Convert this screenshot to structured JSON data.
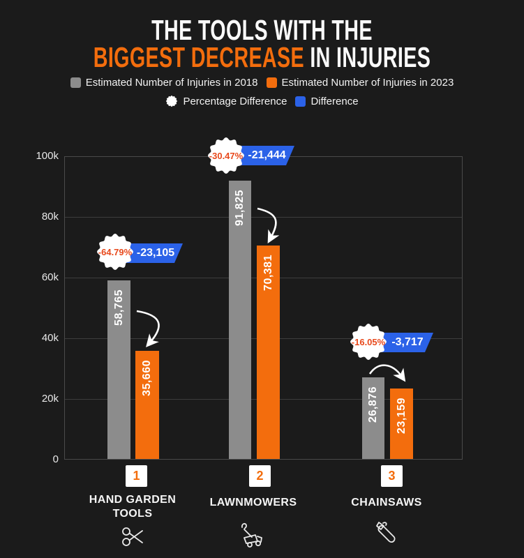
{
  "title": {
    "line1": "THE TOOLS WITH THE",
    "line2_highlight": "BIGGEST DECREASE",
    "line2_rest": " IN INJURIES"
  },
  "legend": {
    "injuries_2018": "Estimated Number of Injuries in 2018",
    "injuries_2023": "Estimated Number of Injuries in 2023",
    "percentage_difference": "Percentage Difference",
    "difference": "Difference"
  },
  "colors": {
    "background": "#1b1b1b",
    "bar_2018_gray": "#8c8c8c",
    "bar_2023_orange": "#f36d0d",
    "difference_flag_blue": "#2b62e8",
    "percentage_text": "#e8491c",
    "text": "#ffffff"
  },
  "y_axis": {
    "ticks": [
      "100k",
      "80k",
      "60k",
      "40k",
      "20k",
      "0"
    ]
  },
  "groups": [
    {
      "rank": "1",
      "category": "HAND GARDEN TOOLS",
      "icon": "garden-shears-icon",
      "value_2018": "58,765",
      "value_2023": "35,660",
      "pct": "-64.79%",
      "diff": "-23,105"
    },
    {
      "rank": "2",
      "category": "LAWNMOWERS",
      "icon": "lawnmower-icon",
      "value_2018": "91,825",
      "value_2023": "70,381",
      "pct": "-30.47%",
      "diff": "-21,444"
    },
    {
      "rank": "3",
      "category": "CHAINSAWS",
      "icon": "chainsaw-icon",
      "value_2018": "26,876",
      "value_2023": "23,159",
      "pct": "-16.05%",
      "diff": "-3,717"
    }
  ],
  "chart_data": {
    "type": "bar",
    "title": "THE TOOLS WITH THE BIGGEST DECREASE IN INJURIES",
    "categories": [
      "Hand Garden Tools",
      "Lawnmowers",
      "Chainsaws"
    ],
    "series": [
      {
        "name": "Estimated Number of Injuries in 2018",
        "values": [
          58765,
          91825,
          26876
        ]
      },
      {
        "name": "Estimated Number of Injuries in 2023",
        "values": [
          35660,
          70381,
          23159
        ]
      }
    ],
    "percentage_difference": [
      -64.79,
      -30.47,
      -16.05
    ],
    "difference": [
      -23105,
      -21444,
      -3717
    ],
    "ranks": [
      1,
      2,
      3
    ],
    "ylim": [
      0,
      100000
    ],
    "y_ticks": [
      0,
      20000,
      40000,
      60000,
      80000,
      100000
    ],
    "grid": "horizontal",
    "legend_position": "top"
  }
}
